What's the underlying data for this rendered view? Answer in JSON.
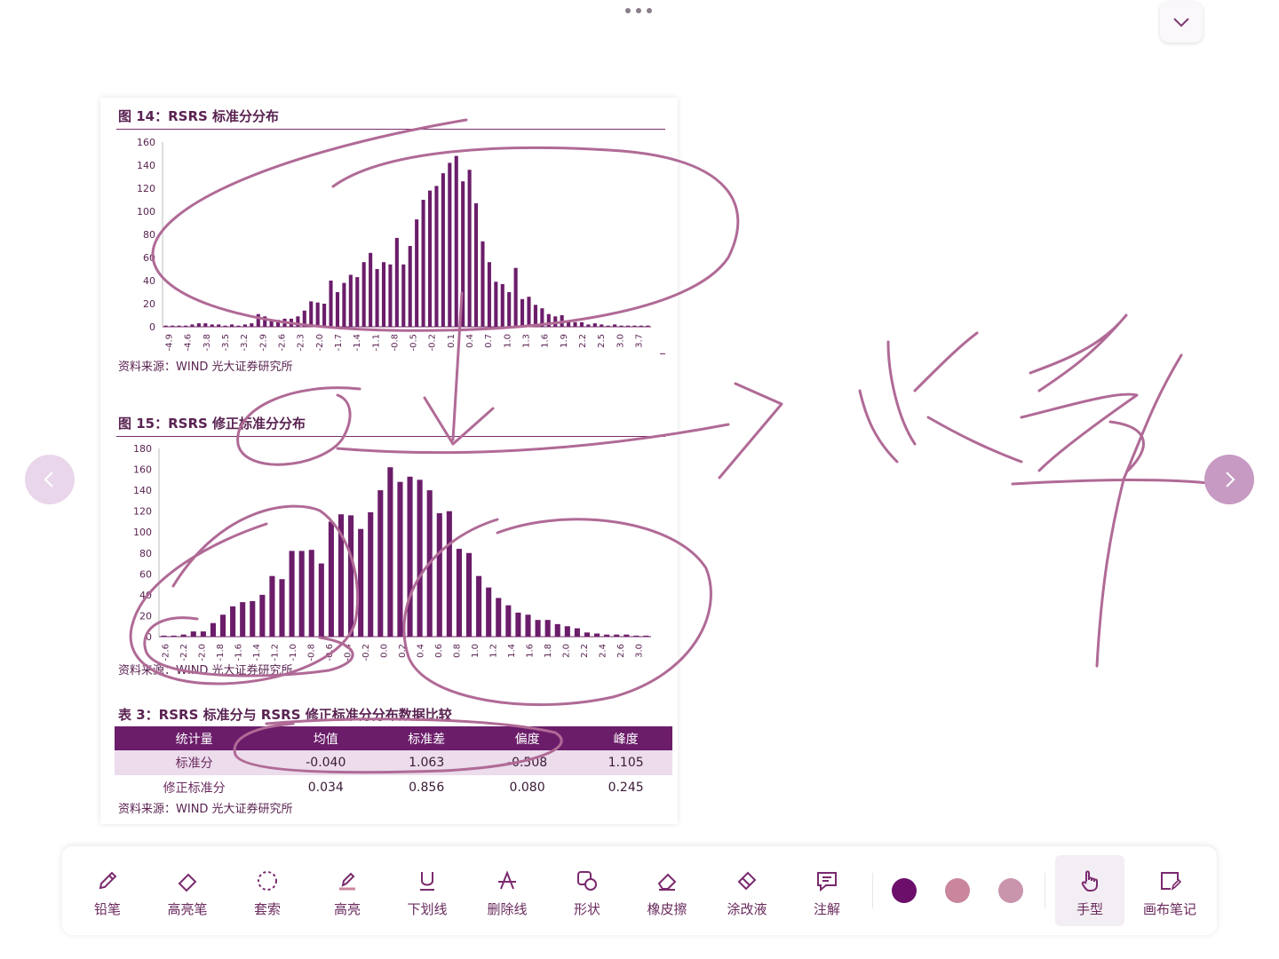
{
  "document": {
    "fig14": {
      "title": "图 14：RSRS 标准分分布",
      "source": "资料来源：WIND 光大证券研究所"
    },
    "fig15": {
      "title": "图 15：RSRS 修正标准分分布",
      "source": "资料来源：WIND 光大证券研究所"
    },
    "table3": {
      "title": "表 3：RSRS 标准分与 RSRS 修正标准分分布数据比较",
      "headers": [
        "统计量",
        "均值",
        "标准差",
        "偏度",
        "峰度"
      ],
      "rows": [
        [
          "标准分",
          "-0.040",
          "1.063",
          "-0.508",
          "1.105"
        ],
        [
          "修正标准分",
          "0.034",
          "0.856",
          "0.080",
          "0.245"
        ]
      ],
      "source": "资料来源：WIND 光大证券研究所"
    }
  },
  "chart_data": [
    {
      "type": "bar",
      "color": "#6b1d6a",
      "ylim": [
        0,
        160
      ],
      "yticks": [
        0,
        20,
        40,
        60,
        80,
        100,
        120,
        140,
        160
      ],
      "xticklabels": [
        "-4.9",
        "-4.6",
        "-3.8",
        "-3.5",
        "-3.2",
        "-2.9",
        "-2.6",
        "-2.3",
        "-2.0",
        "-1.7",
        "-1.4",
        "-1.1",
        "-0.8",
        "-0.5",
        "-0.2",
        "0.1",
        "0.4",
        "0.7",
        "1.0",
        "1.3",
        "1.6",
        "1.9",
        "2.2",
        "2.5",
        "3.0",
        "3.7"
      ],
      "values": [
        1,
        1,
        1,
        1,
        2,
        3,
        3,
        2,
        2,
        1,
        2,
        1,
        2,
        3,
        11,
        9,
        5,
        6,
        7,
        7,
        9,
        14,
        22,
        21,
        20,
        40,
        30,
        38,
        45,
        43,
        56,
        64,
        50,
        56,
        54,
        77,
        54,
        70,
        93,
        110,
        118,
        122,
        133,
        142,
        148,
        126,
        136,
        107,
        74,
        56,
        39,
        37,
        30,
        51,
        24,
        26,
        19,
        16,
        11,
        9,
        10,
        5,
        4,
        4,
        2,
        3,
        2,
        1,
        2,
        1,
        1,
        1,
        1,
        1
      ]
    },
    {
      "type": "bar",
      "color": "#6b1d6a",
      "ylim": [
        0,
        180
      ],
      "yticks": [
        0,
        20,
        40,
        60,
        80,
        100,
        120,
        140,
        160,
        180
      ],
      "xticklabels": [
        "-2.6",
        "-2.2",
        "-2.0",
        "-1.8",
        "-1.6",
        "-1.4",
        "-1.2",
        "-1.0",
        "-0.8",
        "-0.6",
        "-0.4",
        "-0.2",
        "0.0",
        "0.2",
        "0.4",
        "0.6",
        "0.8",
        "1.0",
        "1.2",
        "1.4",
        "1.6",
        "1.8",
        "2.0",
        "2.2",
        "2.4",
        "2.6",
        "3.0"
      ],
      "values": [
        1,
        1,
        2,
        5,
        5,
        13,
        21,
        29,
        33,
        34,
        40,
        58,
        55,
        82,
        82,
        83,
        70,
        110,
        117,
        116,
        103,
        119,
        140,
        162,
        148,
        153,
        150,
        140,
        118,
        120,
        84,
        80,
        58,
        47,
        37,
        30,
        23,
        21,
        16,
        16,
        12,
        10,
        8,
        4,
        3,
        2,
        2,
        2,
        1,
        1
      ]
    }
  ],
  "toolbar": {
    "tools": [
      {
        "label": "铅笔",
        "icon": "pencil-icon"
      },
      {
        "label": "高亮笔",
        "icon": "highlighter-icon"
      },
      {
        "label": "套索",
        "icon": "lasso-icon"
      },
      {
        "label": "高亮",
        "icon": "highlight-icon"
      },
      {
        "label": "下划线",
        "icon": "underline-icon"
      },
      {
        "label": "删除线",
        "icon": "strikethrough-icon"
      },
      {
        "label": "形状",
        "icon": "shape-icon"
      },
      {
        "label": "橡皮擦",
        "icon": "eraser-icon"
      },
      {
        "label": "涂改液",
        "icon": "correction-fluid-icon"
      },
      {
        "label": "注解",
        "icon": "comment-icon"
      },
      {
        "label": "手型",
        "icon": "hand-icon"
      },
      {
        "label": "画布笔记",
        "icon": "canvas-note-icon"
      }
    ],
    "colors": [
      "#6b0f6b",
      "#c9869c",
      "#c995ad"
    ],
    "active_tool": "手型"
  },
  "colors": {
    "accent": "#6b1d6a",
    "ink": "#a85a8c"
  }
}
